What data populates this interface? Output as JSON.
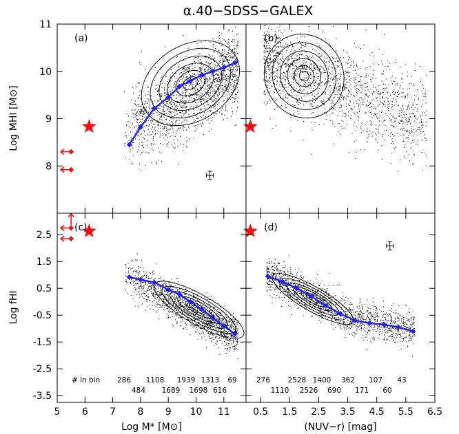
{
  "figure": {
    "title": "α.40−SDSS−GALEX",
    "panel_labels": [
      "(a)",
      "(b)",
      "(c)",
      "(d)"
    ],
    "xlabel_left": "Log M* [M⊙]",
    "xlabel_right": "(NUV−r) [mag]",
    "ylabel_top": "Log MHI [M⊙]",
    "ylabel_bottom": "Log fHI",
    "bin_header": "# in bin",
    "colors": {
      "trend": "#2222ee",
      "star": "#ee1111",
      "arrows": "#ee1111",
      "points": "#000000"
    }
  },
  "chart_data": [
    {
      "panel": "a",
      "type": "scatter",
      "xlim": [
        5,
        11.8
      ],
      "ylim": [
        7.0,
        11.0
      ],
      "xticks": [
        5,
        6,
        7,
        8,
        9,
        10,
        11
      ],
      "yticks": [
        8,
        9,
        10,
        11
      ],
      "ytick_labels": [
        "8",
        "9",
        "10",
        "11"
      ],
      "contour_labels": [
        "50",
        "20"
      ],
      "trend": {
        "x": [
          7.6,
          8.0,
          8.5,
          9.0,
          9.4,
          9.8,
          10.2,
          10.6,
          11.0,
          11.4
        ],
        "y": [
          8.45,
          8.82,
          9.22,
          9.45,
          9.68,
          9.8,
          9.92,
          10.0,
          10.08,
          10.18
        ]
      },
      "star": {
        "x": 6.15,
        "y": 8.83
      },
      "upper_limits": [
        {
          "x": 5.5,
          "y": 8.3
        },
        {
          "x": 5.5,
          "y": 7.92
        }
      ],
      "error_bar": {
        "x": 10.5,
        "y": 7.8
      }
    },
    {
      "panel": "b",
      "type": "scatter",
      "xlim": [
        0,
        6.5
      ],
      "ylim": [
        7.0,
        11.0
      ],
      "contour_labels": [
        "50",
        "20"
      ],
      "star": {
        "x": 0.15,
        "y": 8.83
      }
    },
    {
      "panel": "c",
      "type": "scatter",
      "xlim": [
        5,
        11.8
      ],
      "ylim": [
        -3.75,
        3.3
      ],
      "xticks": [
        5,
        6,
        7,
        8,
        9,
        10,
        11
      ],
      "yticks": [
        -3.5,
        -2.5,
        -1.5,
        -0.5,
        0.5,
        1.5,
        2.5
      ],
      "ytick_labels": [
        "-3.5",
        "-2.5",
        "-1.5",
        "-0.5",
        "0.5",
        "1.5",
        "2.5"
      ],
      "trend": {
        "x": [
          7.6,
          8.0,
          8.5,
          9.0,
          9.4,
          9.8,
          10.2,
          10.6,
          11.0,
          11.4
        ],
        "y": [
          0.92,
          0.82,
          0.72,
          0.45,
          0.28,
          0.0,
          -0.28,
          -0.6,
          -0.9,
          -1.2
        ]
      },
      "star": {
        "x": 6.15,
        "y": 2.63
      },
      "lower_limits": [
        {
          "x": 5.5,
          "y": 2.75
        },
        {
          "x": 5.5,
          "y": 2.35
        }
      ],
      "bin_counts_top": [
        "286",
        "1108",
        "1939",
        "1313",
        "69"
      ],
      "bin_counts_bottom": [
        "484",
        "1689",
        "1698",
        "616"
      ]
    },
    {
      "panel": "d",
      "type": "scatter",
      "xlim": [
        0,
        6.5
      ],
      "ylim": [
        -3.75,
        3.3
      ],
      "xticks": [
        0.5,
        1.5,
        2.5,
        3.5,
        4.5,
        5.5,
        6.5
      ],
      "xtick_labels": [
        "0.5",
        "1.5",
        "2.5",
        "3.5",
        "4.5",
        "5.5",
        "6.5"
      ],
      "trend": {
        "x": [
          0.75,
          1.25,
          1.75,
          2.25,
          2.75,
          3.25,
          3.75,
          4.25,
          4.75,
          5.25,
          5.75
        ],
        "y": [
          0.95,
          0.75,
          0.5,
          0.2,
          -0.15,
          -0.45,
          -0.7,
          -0.8,
          -0.85,
          -0.95,
          -1.1
        ]
      },
      "star": {
        "x": 0.15,
        "y": 2.63
      },
      "error_bar": {
        "x": 4.95,
        "y": 2.08
      },
      "bin_counts_top": [
        "276",
        "2528",
        "1400",
        "362",
        "107",
        "43"
      ],
      "bin_counts_bottom": [
        "1110",
        "2526",
        "690",
        "171",
        "60"
      ]
    }
  ]
}
